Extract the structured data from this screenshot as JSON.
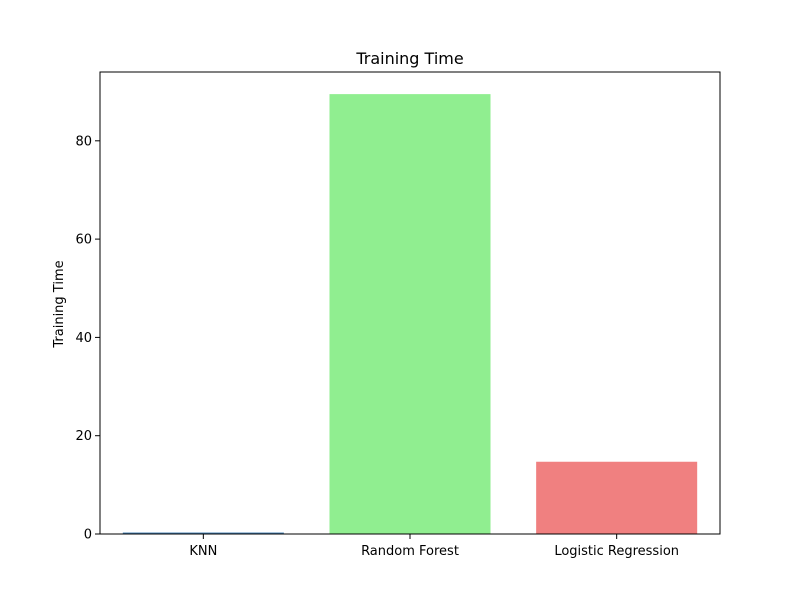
{
  "chart_data": {
    "type": "bar",
    "title": "Training Time",
    "xlabel": "",
    "ylabel": "Training Time",
    "categories": [
      "KNN",
      "Random Forest",
      "Logistic Regression"
    ],
    "values": [
      0.3,
      89.5,
      14.7
    ],
    "colors": [
      "#4682b4",
      "#90ee90",
      "#f08080"
    ],
    "ylim": [
      0,
      94
    ],
    "yticks": [
      0,
      20,
      40,
      60,
      80
    ],
    "grid": false,
    "legend": "none"
  }
}
